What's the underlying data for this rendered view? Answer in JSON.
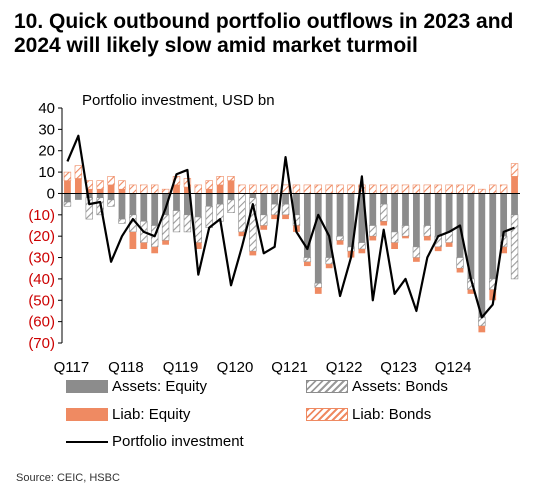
{
  "title": "10. Quick outbound portfolio outflows in 2023 and 2024 will likely slow amid market turmoil",
  "source": "Source: CEIC, HSBC",
  "chart_data": {
    "type": "bar",
    "subtitle": "Portfolio investment, USD bn",
    "ylim": [
      -70,
      40
    ],
    "yticks": [
      40,
      30,
      20,
      10,
      0,
      -10,
      -20,
      -30,
      -40,
      -50,
      -60,
      -70
    ],
    "ytick_labels": [
      "40",
      "30",
      "20",
      "10",
      "0",
      "(10)",
      "(20)",
      "(30)",
      "(40)",
      "(50)",
      "(60)",
      "(70)"
    ],
    "negative_tick_color": "#cc0000",
    "categories": [
      "M01-17",
      "M02-17",
      "M03-17",
      "M04-17",
      "M05-17",
      "M06-17",
      "M07-17",
      "M08-17",
      "M09-17",
      "M10-17",
      "M11-17",
      "M12-17",
      "M01-18",
      "M02-18",
      "M03-18",
      "M04-18",
      "M05-18",
      "M06-18",
      "M07-18",
      "M08-18",
      "M09-18",
      "M10-18",
      "M11-18",
      "M12-18",
      "M01-19",
      "M02-19",
      "M03-19",
      "M04-19",
      "M05-19",
      "M06-19",
      "M07-19",
      "M08-19",
      "M09-19",
      "M10-19",
      "M11-19",
      "M12-19",
      "M01-20",
      "M02-20",
      "M03-20",
      "M04-20",
      "M05-20",
      "M06-20"
    ],
    "x_tick_labels": [
      "Q117",
      "Q118",
      "Q119",
      "Q120",
      "Q121",
      "Q122",
      "Q123",
      "Q124"
    ],
    "series": [
      {
        "name": "Assets: Equity",
        "color": "#8c8c8c",
        "pattern": "solid",
        "values": [
          -4,
          -3,
          -2,
          -2,
          -3,
          -12,
          -10,
          -13,
          -15,
          -10,
          -8,
          -10,
          -11,
          -6,
          -5,
          -3,
          0,
          -2,
          -10,
          -5,
          -5,
          -10,
          -30,
          -42,
          -30,
          -20,
          -25,
          -23,
          -15,
          -5,
          -18,
          -15,
          -25,
          -15,
          -20,
          -18,
          -30,
          -40,
          -58,
          -40,
          -20,
          -10
        ]
      },
      {
        "name": "Assets: Bonds",
        "color": "#8c8c8c",
        "pattern": "hatch",
        "values": [
          -2,
          0,
          -10,
          -8,
          -3,
          -2,
          -8,
          -10,
          -10,
          -12,
          -10,
          -8,
          -12,
          -10,
          -8,
          -6,
          -18,
          -25,
          -5,
          -5,
          -5,
          -5,
          -2,
          -2,
          -3,
          -2,
          -2,
          -3,
          -5,
          -8,
          -5,
          -5,
          -5,
          -5,
          -5,
          -5,
          -5,
          -5,
          -4,
          -5,
          -5,
          -30
        ]
      },
      {
        "name": "Liab: Equity",
        "color": "#ef8a62",
        "pattern": "solid",
        "values": [
          6,
          7,
          2,
          2,
          4,
          2,
          -8,
          -3,
          -3,
          -2,
          4,
          3,
          -3,
          2,
          4,
          6,
          -2,
          -2,
          -2,
          -2,
          -2,
          -3,
          -2,
          -3,
          -2,
          -2,
          -3,
          -2,
          -2,
          -2,
          -3,
          -1,
          -2,
          -2,
          -2,
          -2,
          -2,
          -2,
          -3,
          -5,
          -3,
          8
        ]
      },
      {
        "name": "Liab: Bonds",
        "color": "#ef8a62",
        "pattern": "hatch",
        "values": [
          4,
          6,
          4,
          4,
          4,
          4,
          4,
          4,
          4,
          2,
          4,
          4,
          4,
          4,
          4,
          2,
          4,
          4,
          4,
          4,
          4,
          4,
          4,
          4,
          4,
          4,
          4,
          4,
          4,
          4,
          4,
          4,
          4,
          4,
          4,
          4,
          4,
          4,
          2,
          4,
          4,
          6
        ]
      },
      {
        "name": "Portfolio investment",
        "color": "#000000",
        "pattern": "line",
        "values": [
          15,
          27,
          -5,
          -4,
          -32,
          -20,
          -12,
          -18,
          -20,
          -7,
          9,
          11,
          -38,
          -16,
          -12,
          -43,
          -25,
          -5,
          -28,
          -25,
          17,
          -18,
          -26,
          -10,
          -20,
          -48,
          -30,
          8,
          -50,
          -17,
          -47,
          -40,
          -55,
          -30,
          -20,
          -18,
          -15,
          -40,
          -58,
          -52,
          -18,
          -16
        ]
      }
    ],
    "legend": {
      "placement": "bottom",
      "entries": [
        "Assets: Equity",
        "Assets: Bonds",
        "Liab: Equity",
        "Liab: Bonds",
        "Portfolio investment"
      ]
    },
    "grid": false
  }
}
